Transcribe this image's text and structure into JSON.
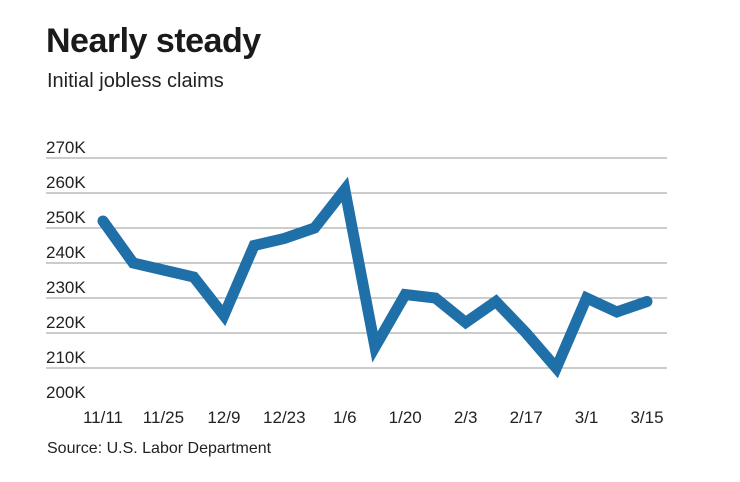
{
  "chart_data": {
    "type": "line",
    "title": "Nearly steady",
    "subtitle": "Initial jobless claims",
    "source": "Source: U.S. Labor Department",
    "y_ticks": [
      "270K",
      "260K",
      "250K",
      "240K",
      "230K",
      "220K",
      "210K",
      "200K"
    ],
    "x_ticks": [
      "11/11",
      "11/25",
      "12/9",
      "12/23",
      "1/6",
      "1/20",
      "2/3",
      "2/17",
      "3/1",
      "3/15"
    ],
    "ylim": [
      200000,
      270000
    ],
    "grid": true,
    "line_color": "#1f6fa8",
    "x": [
      "11/11",
      "11/18",
      "11/25",
      "12/2",
      "12/9",
      "12/16",
      "12/23",
      "12/30",
      "1/6",
      "1/13",
      "1/20",
      "1/27",
      "2/3",
      "2/10",
      "2/17",
      "2/24",
      "3/1",
      "3/8",
      "3/15"
    ],
    "values": [
      252000,
      240000,
      238000,
      236000,
      225000,
      245000,
      247000,
      250000,
      261000,
      216000,
      231000,
      230000,
      223000,
      229000,
      220000,
      210000,
      230000,
      226000,
      229000
    ]
  }
}
